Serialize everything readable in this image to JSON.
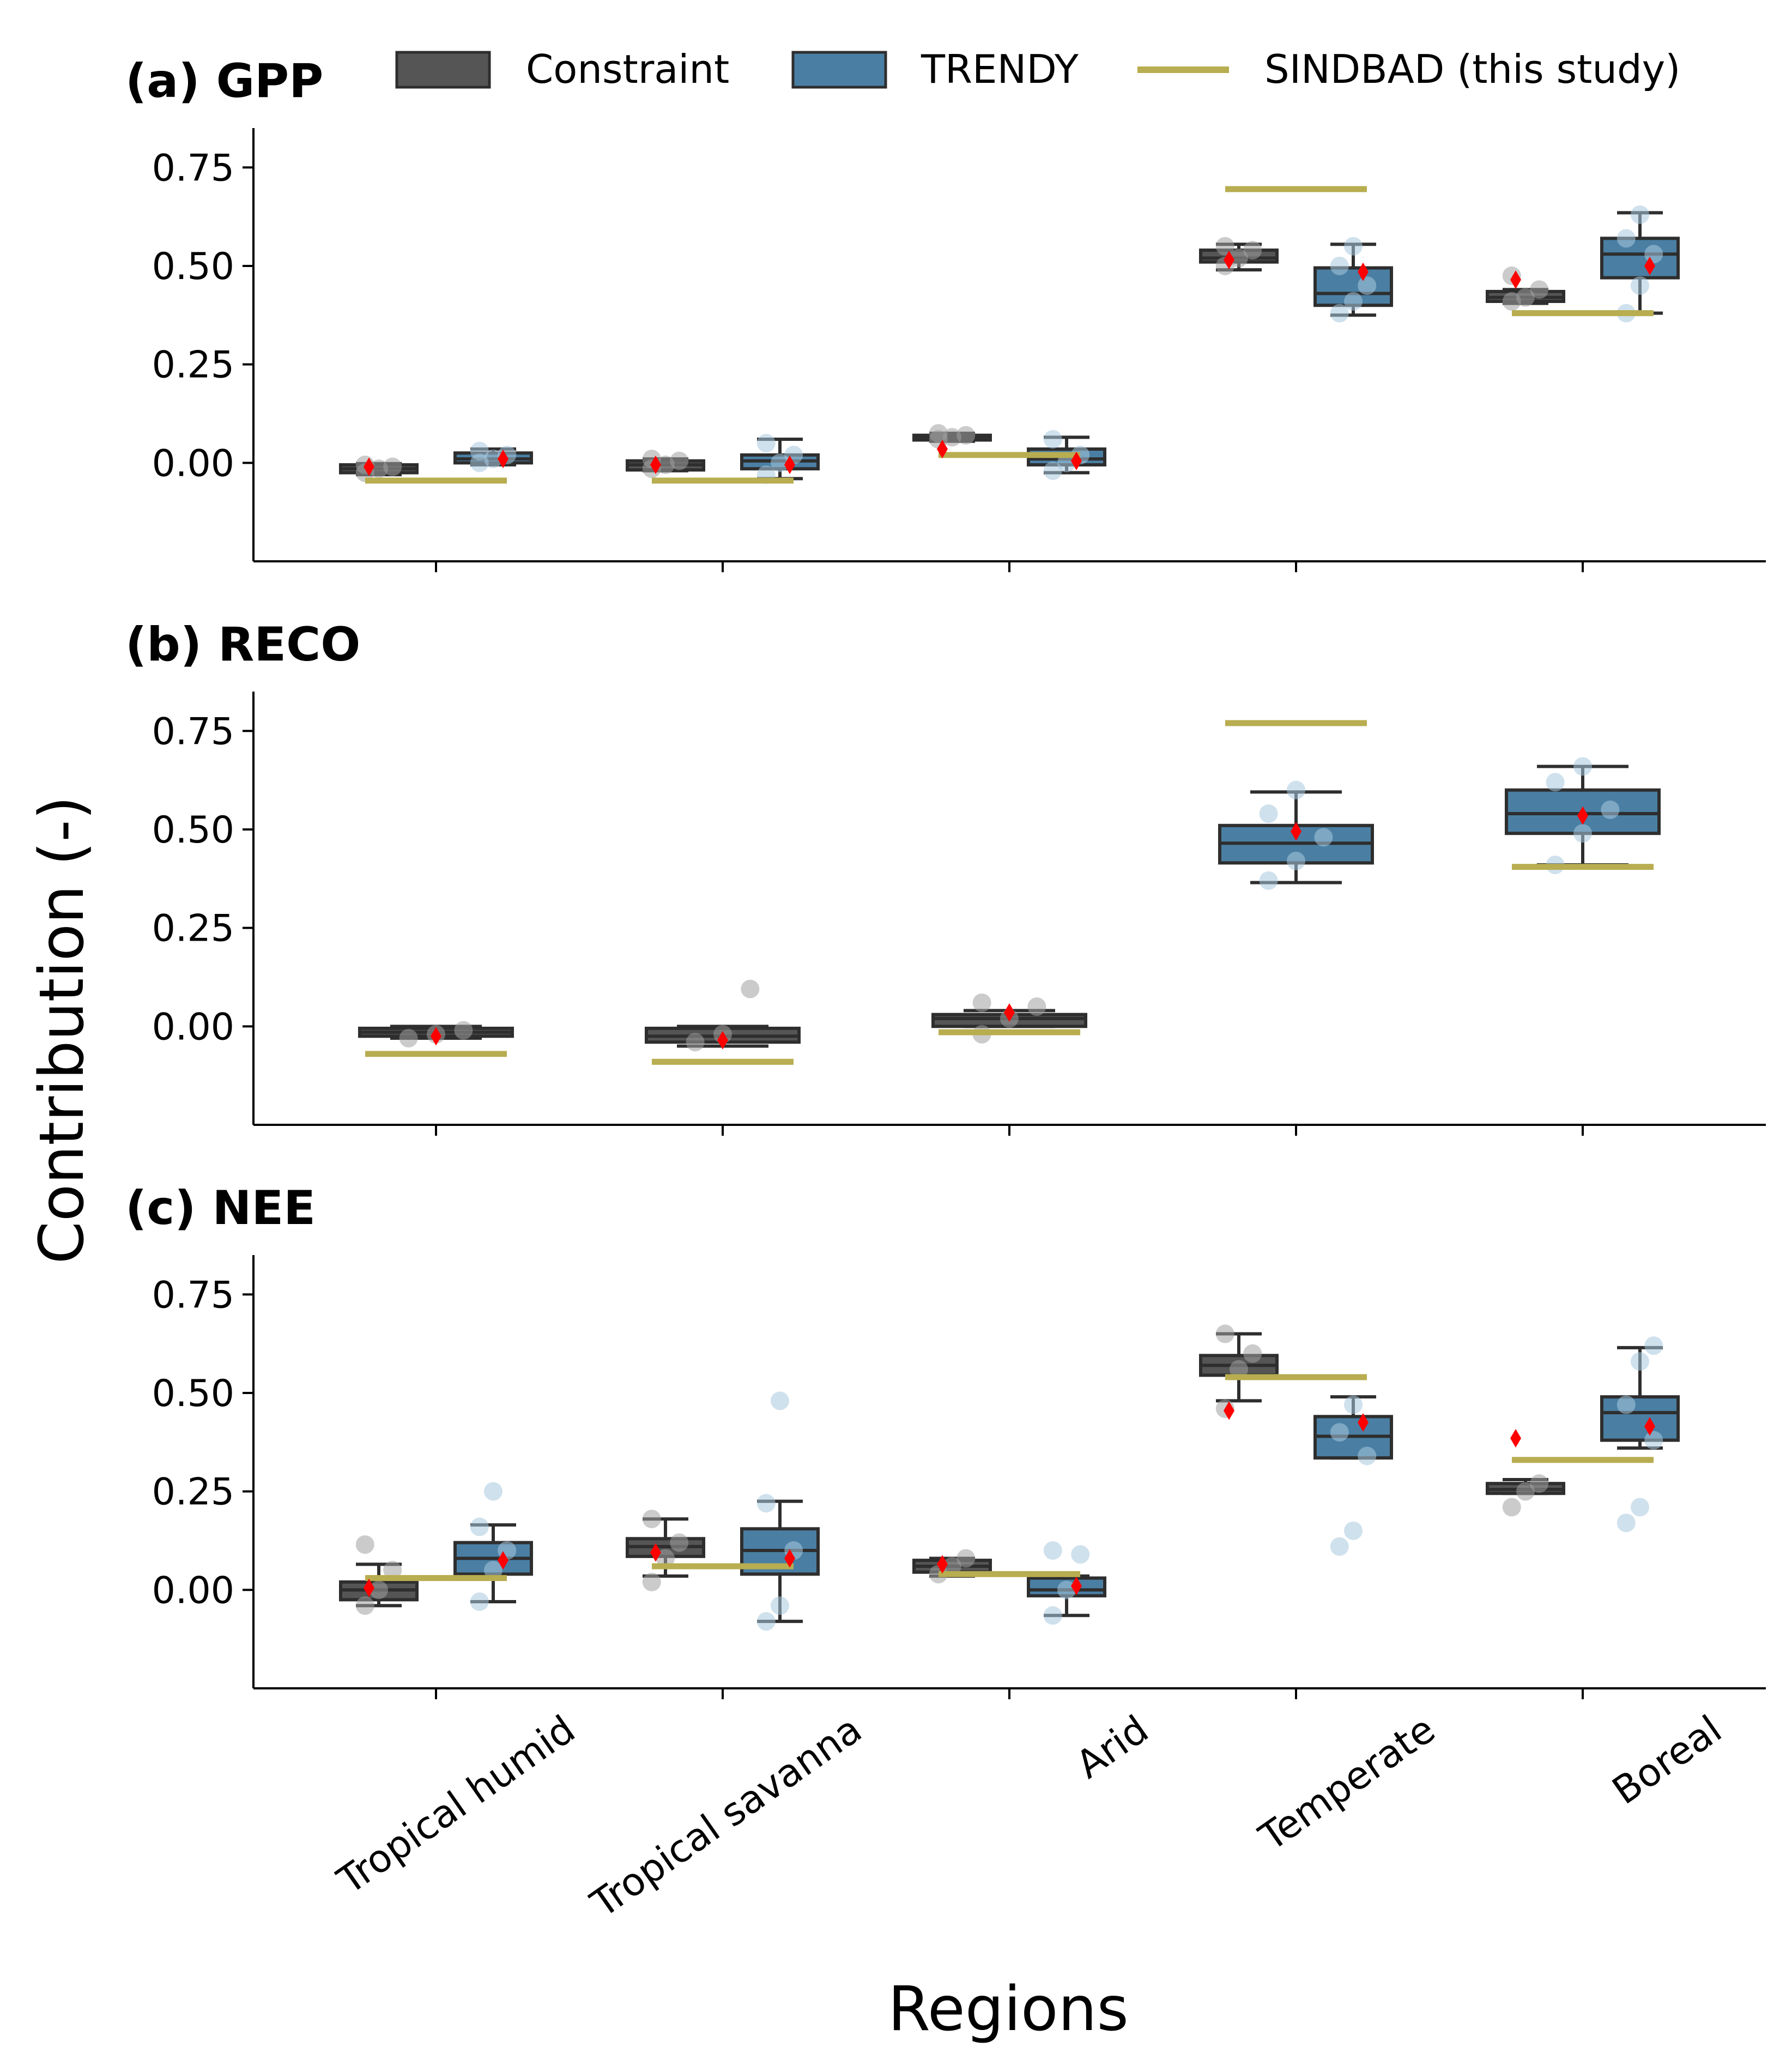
{
  "figure": {
    "ylabel": "Contribution (-)",
    "xlabel": "Regions",
    "categories": [
      "Tropical humid",
      "Tropical savanna",
      "Arid",
      "Temperate",
      "Boreal"
    ]
  },
  "legend": {
    "placement": "top",
    "items": [
      {
        "label": "Constraint",
        "kind": "box",
        "color": "#555555"
      },
      {
        "label": "TRENDY",
        "kind": "box",
        "color": "#4a7fa3"
      },
      {
        "label": "SINDBAD (this study)",
        "kind": "line",
        "color": "#b8ad50"
      }
    ]
  },
  "colors": {
    "constraint_box": "#555555",
    "trendy_box": "#4a7fa3",
    "box_edge": "#2e2e2e",
    "sindbad_line": "#b8ad50",
    "mean_marker": "#ff0000",
    "constraint_points": "#a0a0a0",
    "trendy_points": "#a8c8de"
  },
  "chart_data": [
    {
      "type": "box",
      "title": "(a) GPP",
      "ylim": [
        -0.25,
        0.85
      ],
      "yticks": [
        "0.00",
        "0.25",
        "0.50",
        "0.75"
      ],
      "yticks_values": [
        0.0,
        0.25,
        0.5,
        0.75
      ],
      "series": [
        {
          "name": "Constraint",
          "boxes": [
            {
              "category": "Tropical humid",
              "whislo": -0.03,
              "q1": -0.025,
              "med": -0.015,
              "q3": -0.005,
              "whishi": -0.002,
              "mean": -0.01,
              "points": [
                -0.025,
                -0.015,
                -0.01,
                -0.005
              ]
            },
            {
              "category": "Tropical savanna",
              "whislo": -0.02,
              "q1": -0.018,
              "med": -0.005,
              "q3": 0.005,
              "whishi": 0.01,
              "mean": -0.005,
              "points": [
                -0.015,
                -0.005,
                0.005,
                0.01
              ]
            },
            {
              "category": "Arid",
              "whislo": 0.055,
              "q1": 0.058,
              "med": 0.065,
              "q3": 0.07,
              "whishi": 0.075,
              "mean": 0.035,
              "points": [
                0.06,
                0.065,
                0.07,
                0.075
              ]
            },
            {
              "category": "Temperate",
              "whislo": 0.49,
              "q1": 0.51,
              "med": 0.52,
              "q3": 0.54,
              "whishi": 0.555,
              "mean": 0.515,
              "points": [
                0.5,
                0.52,
                0.54,
                0.55
              ]
            },
            {
              "category": "Boreal",
              "whislo": 0.405,
              "q1": 0.41,
              "med": 0.42,
              "q3": 0.435,
              "whishi": 0.44,
              "mean": 0.465,
              "points": [
                0.41,
                0.42,
                0.44,
                0.475
              ]
            }
          ]
        },
        {
          "name": "TRENDY",
          "boxes": [
            {
              "category": "Tropical humid",
              "whislo": -0.005,
              "q1": 0.0,
              "med": 0.01,
              "q3": 0.025,
              "whishi": 0.035,
              "mean": 0.01,
              "points": [
                0.0,
                0.01,
                0.02,
                0.03
              ]
            },
            {
              "category": "Tropical savanna",
              "whislo": -0.04,
              "q1": -0.015,
              "med": 0.005,
              "q3": 0.02,
              "whishi": 0.06,
              "mean": -0.005,
              "points": [
                -0.03,
                0.0,
                0.02,
                0.05
              ]
            },
            {
              "category": "Arid",
              "whislo": -0.025,
              "q1": -0.005,
              "med": 0.01,
              "q3": 0.035,
              "whishi": 0.065,
              "mean": 0.005,
              "points": [
                -0.02,
                0.0,
                0.02,
                0.06
              ]
            },
            {
              "category": "Temperate",
              "whislo": 0.375,
              "q1": 0.4,
              "med": 0.43,
              "q3": 0.495,
              "whishi": 0.555,
              "mean": 0.485,
              "points": [
                0.38,
                0.41,
                0.45,
                0.5,
                0.55
              ]
            },
            {
              "category": "Boreal",
              "whislo": 0.38,
              "q1": 0.47,
              "med": 0.53,
              "q3": 0.57,
              "whishi": 0.635,
              "mean": 0.5,
              "points": [
                0.38,
                0.45,
                0.53,
                0.57,
                0.63
              ]
            }
          ]
        },
        {
          "name": "SINDBAD (this study)",
          "values": [
            -0.045,
            -0.045,
            0.02,
            0.695,
            0.38
          ]
        }
      ]
    },
    {
      "type": "box",
      "title": "(b) RECO",
      "ylim": [
        -0.25,
        0.85
      ],
      "yticks": [
        "0.00",
        "0.25",
        "0.50",
        "0.75"
      ],
      "yticks_values": [
        0.0,
        0.25,
        0.5,
        0.75
      ],
      "series": [
        {
          "name": "Constraint",
          "boxes": [
            {
              "category": "Tropical humid",
              "whislo": -0.03,
              "q1": -0.025,
              "med": -0.015,
              "q3": -0.005,
              "whishi": 0.0,
              "mean": -0.025,
              "points": [
                -0.03,
                -0.02,
                -0.01
              ]
            },
            {
              "category": "Tropical savanna",
              "whislo": -0.05,
              "q1": -0.04,
              "med": -0.025,
              "q3": -0.005,
              "whishi": 0.0,
              "mean": -0.035,
              "points": [
                -0.04,
                -0.02,
                0.095
              ]
            },
            {
              "category": "Arid",
              "whislo": 0.0,
              "q1": 0.0,
              "med": 0.02,
              "q3": 0.03,
              "whishi": 0.04,
              "mean": 0.035,
              "points": [
                -0.02,
                0.02,
                0.05,
                0.06
              ]
            }
          ]
        },
        {
          "name": "TRENDY",
          "boxes": [
            {
              "category": "Temperate",
              "whislo": 0.365,
              "q1": 0.415,
              "med": 0.465,
              "q3": 0.51,
              "whishi": 0.595,
              "mean": 0.495,
              "points": [
                0.37,
                0.42,
                0.48,
                0.54,
                0.6
              ]
            },
            {
              "category": "Boreal",
              "whislo": 0.41,
              "q1": 0.49,
              "med": 0.54,
              "q3": 0.6,
              "whishi": 0.66,
              "mean": 0.535,
              "points": [
                0.41,
                0.49,
                0.55,
                0.62,
                0.66
              ]
            }
          ]
        },
        {
          "name": "SINDBAD (this study)",
          "values": [
            -0.07,
            -0.09,
            -0.015,
            0.77,
            0.405
          ]
        }
      ]
    },
    {
      "type": "box",
      "title": "(c) NEE",
      "ylim": [
        -0.25,
        0.85
      ],
      "yticks": [
        "0.00",
        "0.25",
        "0.50",
        "0.75"
      ],
      "yticks_values": [
        0.0,
        0.25,
        0.5,
        0.75
      ],
      "series": [
        {
          "name": "Constraint",
          "boxes": [
            {
              "category": "Tropical humid",
              "whislo": -0.04,
              "q1": -0.025,
              "med": 0.0,
              "q3": 0.02,
              "whishi": 0.065,
              "mean": 0.005,
              "points": [
                -0.04,
                0.0,
                0.05,
                0.115
              ]
            },
            {
              "category": "Tropical savanna",
              "whislo": 0.035,
              "q1": 0.085,
              "med": 0.11,
              "q3": 0.13,
              "whishi": 0.18,
              "mean": 0.095,
              "points": [
                0.02,
                0.08,
                0.12,
                0.18
              ]
            },
            {
              "category": "Arid",
              "whislo": 0.035,
              "q1": 0.045,
              "med": 0.06,
              "q3": 0.075,
              "whishi": 0.08,
              "mean": 0.065,
              "points": [
                0.04,
                0.06,
                0.08
              ]
            },
            {
              "category": "Temperate",
              "whislo": 0.48,
              "q1": 0.545,
              "med": 0.57,
              "q3": 0.595,
              "whishi": 0.65,
              "mean": 0.455,
              "points": [
                0.46,
                0.56,
                0.6,
                0.65
              ]
            },
            {
              "category": "Boreal",
              "whislo": 0.245,
              "q1": 0.245,
              "med": 0.255,
              "q3": 0.27,
              "whishi": 0.28,
              "mean": 0.385,
              "points": [
                0.21,
                0.25,
                0.27
              ]
            }
          ]
        },
        {
          "name": "TRENDY",
          "boxes": [
            {
              "category": "Tropical humid",
              "whislo": -0.03,
              "q1": 0.04,
              "med": 0.08,
              "q3": 0.12,
              "whishi": 0.165,
              "mean": 0.075,
              "points": [
                -0.03,
                0.05,
                0.1,
                0.16,
                0.25
              ]
            },
            {
              "category": "Tropical savanna",
              "whislo": -0.08,
              "q1": 0.04,
              "med": 0.1,
              "q3": 0.155,
              "whishi": 0.225,
              "mean": 0.08,
              "points": [
                -0.08,
                -0.04,
                0.1,
                0.22,
                0.48
              ]
            },
            {
              "category": "Arid",
              "whislo": -0.065,
              "q1": -0.015,
              "med": 0.0,
              "q3": 0.03,
              "whishi": 0.035,
              "mean": 0.01,
              "points": [
                -0.065,
                0.0,
                0.09,
                0.1
              ]
            },
            {
              "category": "Temperate",
              "whislo": 0.335,
              "q1": 0.335,
              "med": 0.39,
              "q3": 0.44,
              "whishi": 0.49,
              "mean": 0.425,
              "points": [
                0.11,
                0.15,
                0.34,
                0.4,
                0.47
              ]
            },
            {
              "category": "Boreal",
              "whislo": 0.36,
              "q1": 0.38,
              "med": 0.45,
              "q3": 0.49,
              "whishi": 0.615,
              "mean": 0.415,
              "points": [
                0.17,
                0.21,
                0.38,
                0.47,
                0.58,
                0.62
              ]
            }
          ]
        },
        {
          "name": "SINDBAD (this study)",
          "values": [
            0.03,
            0.06,
            0.04,
            0.54,
            0.33
          ]
        }
      ]
    }
  ]
}
